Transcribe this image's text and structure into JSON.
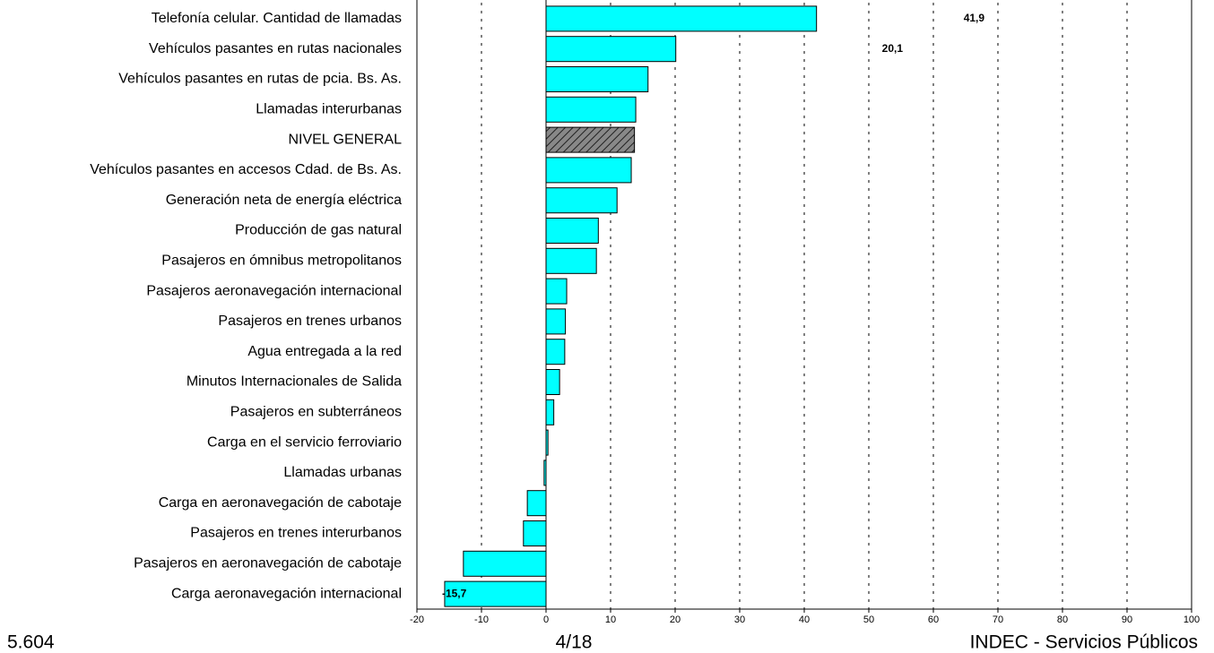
{
  "chart_data": {
    "type": "hbar",
    "categories": [
      "Telefonía celular. Cantidad de llamadas",
      "Vehículos pasantes en rutas nacionales",
      "Vehículos pasantes en rutas de pcia. Bs. As.",
      "Llamadas interurbanas",
      "NIVEL GENERAL",
      "Vehículos pasantes en accesos Cdad. de Bs. As.",
      "Generación neta de energía eléctrica",
      "Producción de gas natural",
      "Pasajeros en ómnibus metropolitanos",
      "Pasajeros aeronavegación internacional",
      "Pasajeros en trenes urbanos",
      "Agua entregada a la red",
      "Minutos Internacionales de Salida",
      "Pasajeros en subterráneos",
      "Carga en el servicio ferroviario",
      "Llamadas urbanas",
      "Carga en aeronavegación de cabotaje",
      "Pasajeros en trenes interurbanos",
      "Pasajeros en aeronavegación de cabotaje",
      "Carga aeronavegación internacional"
    ],
    "values": [
      41.9,
      20.1,
      15.8,
      13.9,
      13.7,
      13.2,
      11.0,
      8.1,
      7.8,
      3.2,
      3.0,
      2.9,
      2.1,
      1.2,
      0.3,
      -0.3,
      -2.9,
      -3.5,
      -12.8,
      -15.7
    ],
    "value_labels": [
      "41,9",
      "20,1",
      null,
      null,
      null,
      null,
      null,
      null,
      null,
      null,
      null,
      null,
      null,
      null,
      null,
      null,
      null,
      null,
      null,
      "-15,7"
    ],
    "colors": [
      "#00ffff",
      "#00ffff",
      "#00ffff",
      "#00ffff",
      "hatch",
      "#00ffff",
      "#00ffff",
      "#00ffff",
      "#00ffff",
      "#00ffff",
      "#00ffff",
      "#00ffff",
      "#00ffff",
      "#00ffff",
      "#00ffff",
      "#00ffff",
      "#00ffff",
      "#00ffff",
      "#00ffff",
      "#00ffff"
    ],
    "xlim": [
      -20,
      100
    ],
    "xticks": [
      -20,
      -10,
      0,
      10,
      20,
      30,
      40,
      50,
      60,
      70,
      80,
      90,
      100
    ],
    "grid": true
  },
  "footer": {
    "left": "5.604",
    "center": "4/18",
    "right": "INDEC - Servicios Públicos"
  }
}
